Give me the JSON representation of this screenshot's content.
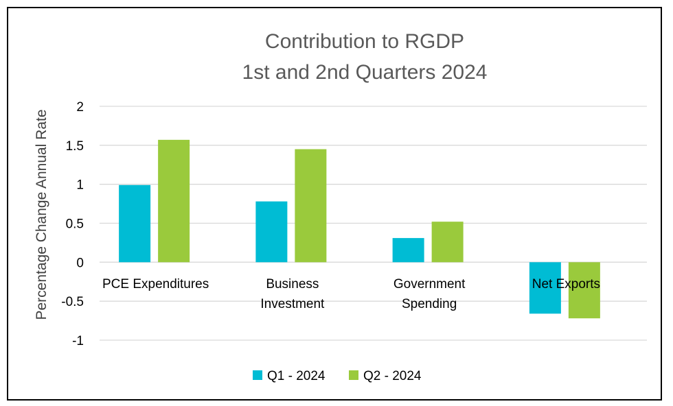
{
  "chart_data": {
    "type": "bar",
    "title_lines": [
      "Contribution to RGDP",
      "1st and 2nd Quarters 2024"
    ],
    "xlabel": "",
    "ylabel": "Percentage Change Annual Rate",
    "ylim": [
      -1,
      2
    ],
    "yticks": [
      2,
      1.5,
      1,
      0.5,
      0,
      -0.5,
      -1
    ],
    "grid": true,
    "legend_position": "bottom",
    "categories": [
      [
        "PCE Expenditures"
      ],
      [
        "Business",
        "Investment"
      ],
      [
        "Government",
        "Spending"
      ],
      [
        "Net Exports"
      ]
    ],
    "series": [
      {
        "name": "Q1 - 2024",
        "color": "#00BCD4",
        "values": [
          0.99,
          0.78,
          0.31,
          -0.66
        ]
      },
      {
        "name": "Q2 - 2024",
        "color": "#9ACA3C",
        "values": [
          1.57,
          1.45,
          0.52,
          -0.72
        ]
      }
    ]
  }
}
